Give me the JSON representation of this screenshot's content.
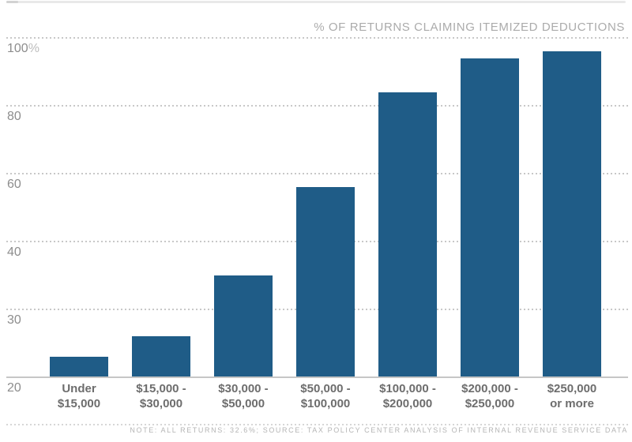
{
  "chart_data": {
    "type": "bar",
    "title": "% OF RETURNS CLAIMING ITEMIZED DEDUCTIONS",
    "note": "NOTE: ALL RETURNS: 32.6%; SOURCE: TAX POLICY CENTER ANALYSIS OF INTERNAL REVENUE SERVICE DATA",
    "categories": [
      [
        "Under",
        "$15,000"
      ],
      [
        "$15,000 -",
        "$30,000"
      ],
      [
        "$30,000 -",
        "$50,000"
      ],
      [
        "$50,000 -",
        "$100,000"
      ],
      [
        "$100,000 -",
        "$200,000"
      ],
      [
        "$200,000 -",
        "$250,000"
      ],
      [
        "$250,000",
        "or more"
      ]
    ],
    "values": [
      23,
      26,
      35,
      56,
      84,
      94,
      96
    ],
    "xlabel": "",
    "ylabel": "",
    "y_ticks": [
      20,
      30,
      40,
      60,
      80,
      100
    ],
    "y_tick_labels": [
      "20",
      "30",
      "40",
      "60",
      "80",
      "100%"
    ],
    "ylim": [
      20,
      100
    ],
    "axis_scale": "piecewise: ticks 20,30,40,60,80,100 drawn at equal vertical spacing",
    "grid": "horizontal dotted gridlines, solid baseline at 20",
    "legend": "none",
    "colors": {
      "bar": "#1f5c87",
      "gridline": "#c8c8c8",
      "tick_label": "#8d8d8d",
      "category_label": "#6d6d6d",
      "title": "#ababab",
      "note": "#b5b5b5",
      "background": "#ffffff"
    }
  }
}
